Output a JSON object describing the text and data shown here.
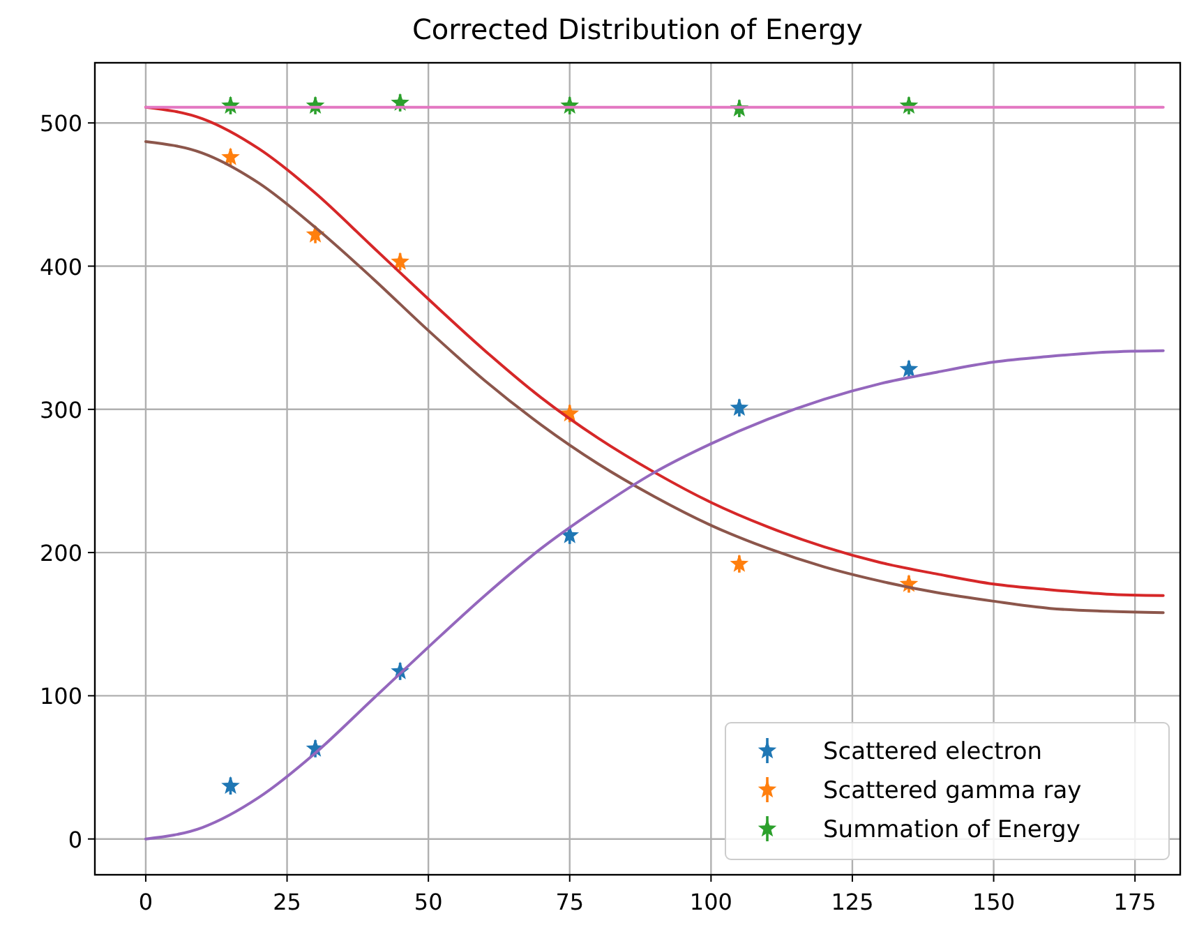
{
  "chart_data": {
    "type": "scatter",
    "title": "Corrected Distribution of Energy",
    "xlim": [
      -9,
      183
    ],
    "ylim": [
      -25,
      542
    ],
    "xticks": [
      0,
      25,
      50,
      75,
      100,
      125,
      150,
      175
    ],
    "yticks": [
      0,
      100,
      200,
      300,
      400,
      500
    ],
    "grid": true,
    "legend": "bottom right",
    "series": [
      {
        "name": "Scattered electron",
        "color": "#1f77b4",
        "x": [
          15,
          30,
          45,
          75,
          105,
          135
        ],
        "values": [
          37,
          63,
          117,
          212,
          301,
          328
        ],
        "marker": "star",
        "errors": [
          6,
          6,
          6,
          6,
          6,
          6
        ]
      },
      {
        "name": "Scattered gamma ray",
        "color": "#ff7f0e",
        "x": [
          15,
          30,
          45,
          75,
          105,
          135
        ],
        "values": [
          476,
          422,
          403,
          297,
          192,
          178
        ],
        "marker": "star",
        "errors": [
          6,
          6,
          6,
          6,
          6,
          6
        ]
      },
      {
        "name": "Summation of Energy",
        "color": "#2ca02c",
        "x": [
          15,
          30,
          45,
          75,
          105,
          135
        ],
        "values": [
          512,
          512,
          514,
          512,
          510,
          512
        ],
        "marker": "star",
        "errors": [
          6,
          6,
          6,
          6,
          6,
          6
        ]
      },
      {
        "type": "line",
        "color": "#d62728",
        "x": [
          0,
          10,
          20,
          30,
          40,
          50,
          60,
          70,
          80,
          90,
          100,
          110,
          120,
          130,
          140,
          150,
          160,
          170,
          180
        ],
        "values": [
          511,
          503,
          482,
          451,
          414,
          377,
          341,
          308,
          280,
          256,
          235,
          218,
          204,
          193,
          185,
          178,
          174,
          171,
          170
        ]
      },
      {
        "type": "line",
        "color": "#8c564b",
        "x": [
          0,
          10,
          20,
          30,
          40,
          50,
          60,
          70,
          80,
          90,
          100,
          110,
          120,
          130,
          140,
          150,
          160,
          170,
          180
        ],
        "values": [
          487,
          479,
          458,
          427,
          392,
          355,
          320,
          289,
          262,
          239,
          219,
          203,
          190,
          180,
          172,
          166,
          161,
          159,
          158
        ]
      },
      {
        "type": "line",
        "color": "#9467bd",
        "x": [
          0,
          10,
          20,
          30,
          40,
          50,
          60,
          70,
          80,
          90,
          100,
          110,
          120,
          130,
          140,
          150,
          160,
          170,
          180
        ],
        "values": [
          0,
          8,
          29,
          60,
          97,
          134,
          170,
          203,
          231,
          256,
          276,
          293,
          307,
          318,
          326,
          333,
          337,
          340,
          341
        ]
      },
      {
        "type": "line",
        "color": "#e377c2",
        "x": [
          0,
          45,
          90,
          135,
          180
        ],
        "values": [
          511,
          511,
          511,
          511,
          511
        ]
      }
    ]
  }
}
